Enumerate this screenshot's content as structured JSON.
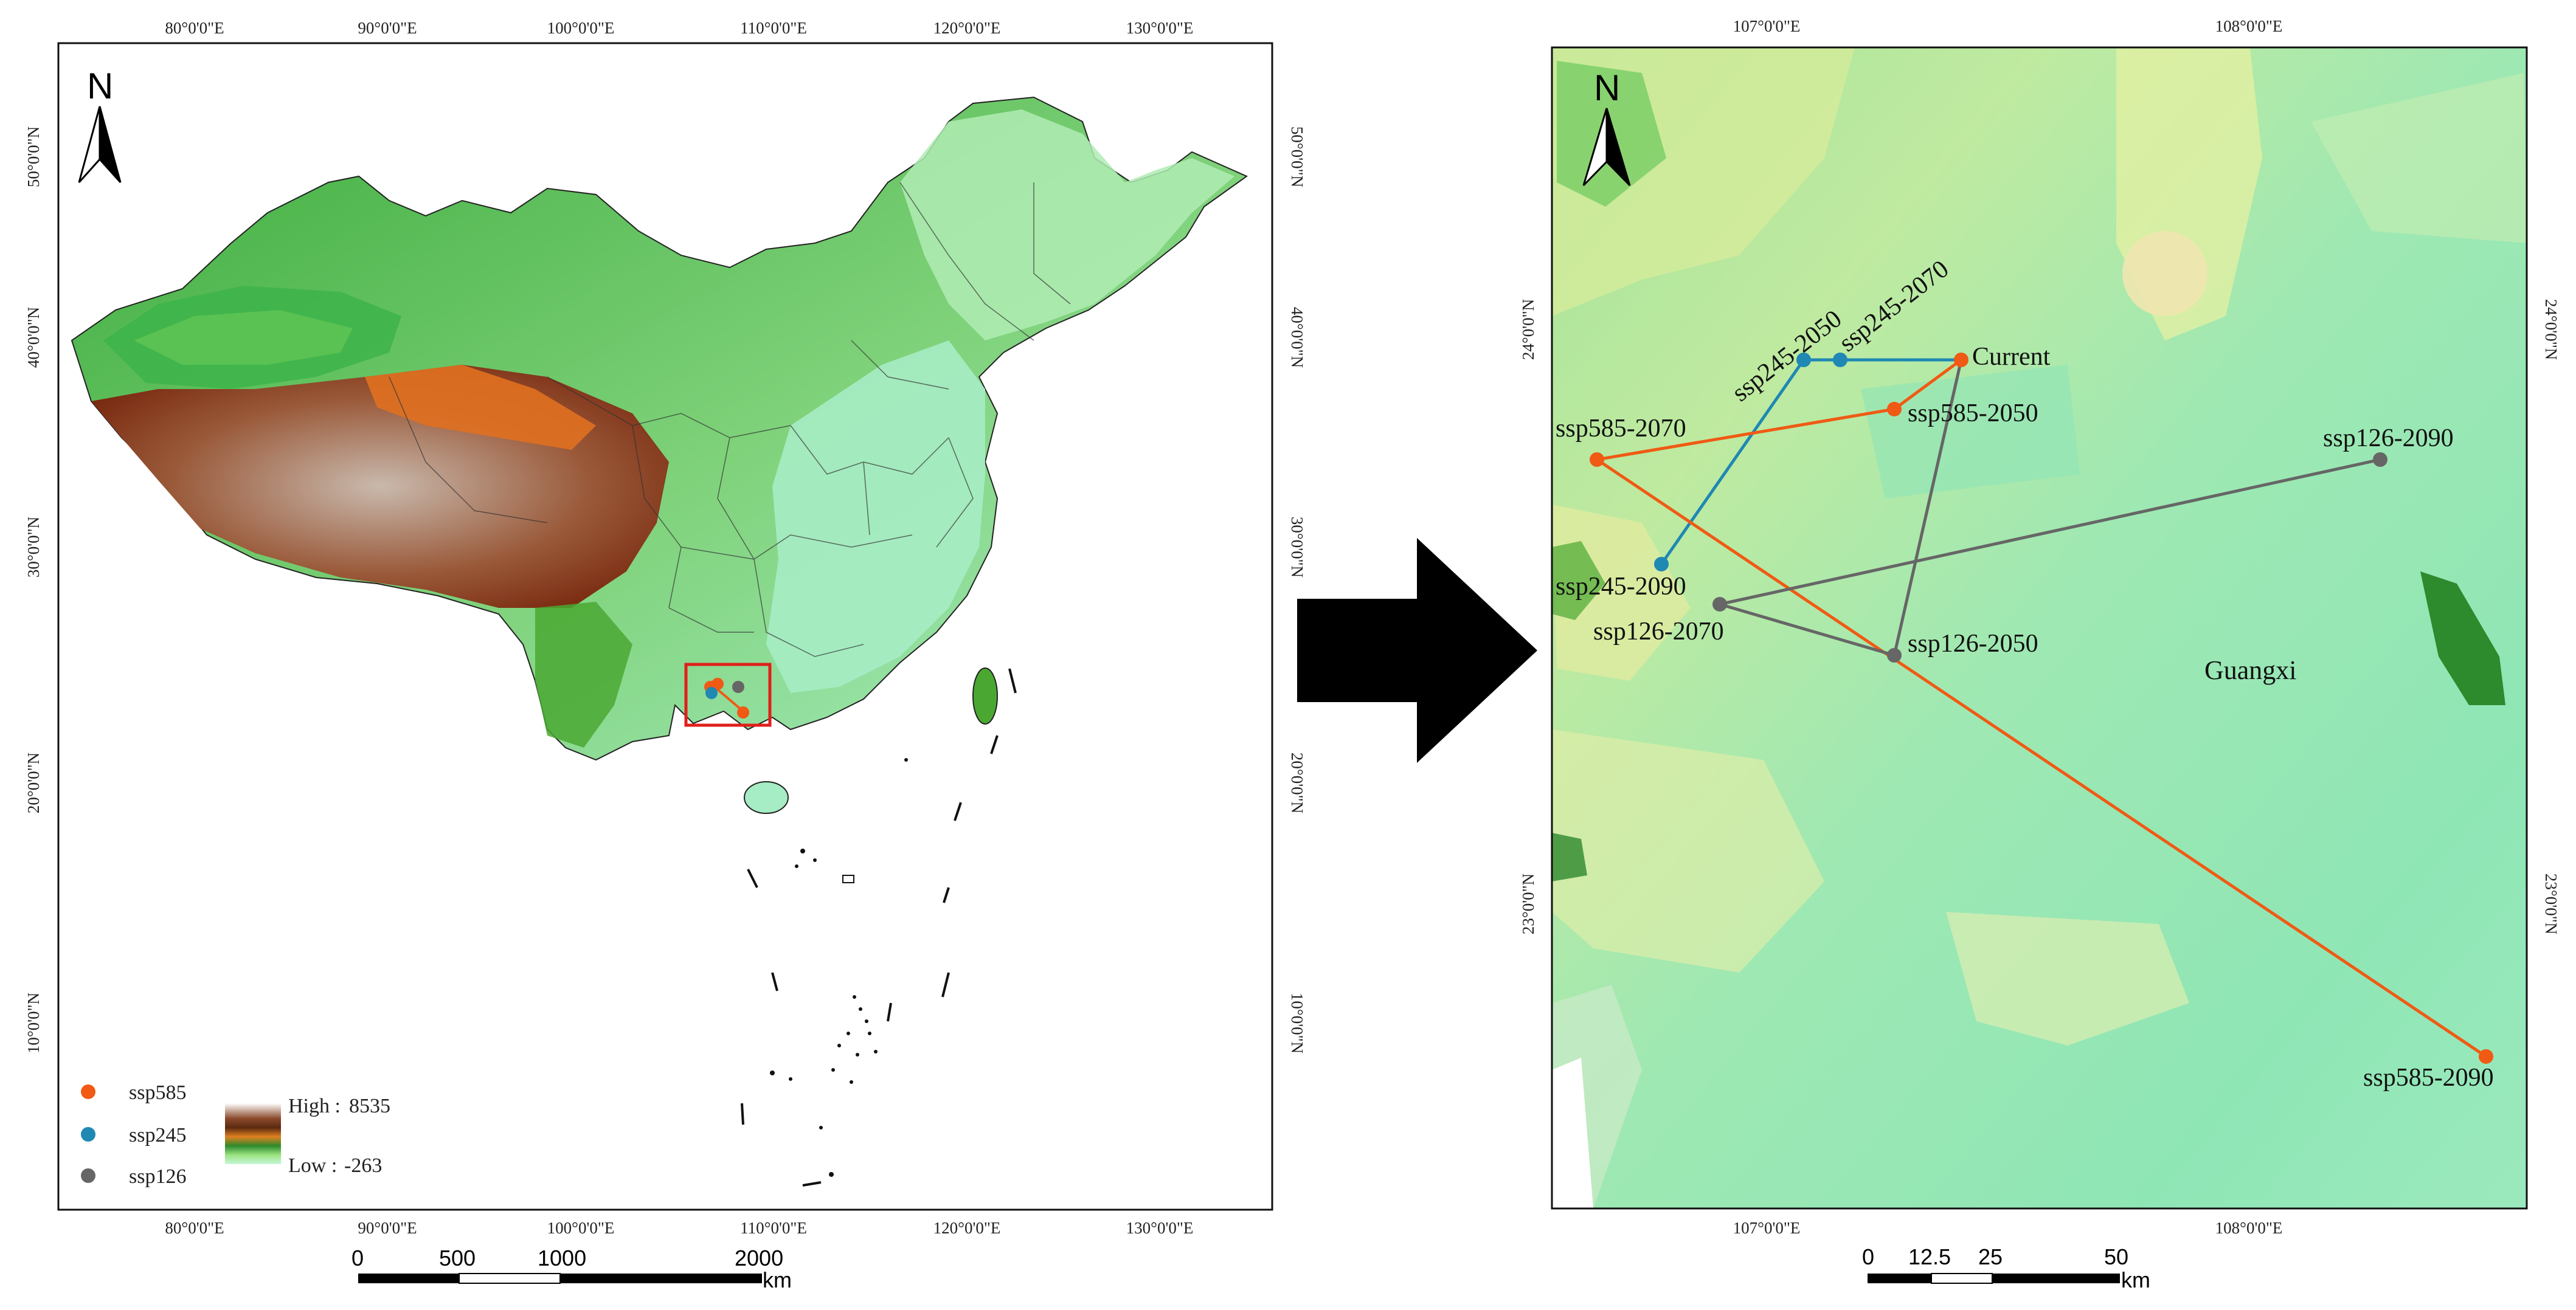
{
  "left_map": {
    "top_ticks": [
      "80°0'0\"E",
      "90°0'0\"E",
      "100°0'0\"E",
      "110°0'0\"E",
      "120°0'0\"E",
      "130°0'0\"E"
    ],
    "bottom_ticks": [
      "80°0'0\"E",
      "90°0'0\"E",
      "100°0'0\"E",
      "110°0'0\"E",
      "120°0'0\"E",
      "130°0'0\"E"
    ],
    "left_ticks": [
      "50°0'0\"N",
      "40°0'0\"N",
      "30°0'0\"N",
      "20°0'0\"N",
      "10°0'0\"N"
    ],
    "right_ticks": [
      "50°0'0\"N",
      "40°0'0\"N",
      "30°0'0\"N",
      "20°0'0\"N",
      "10°0'0\"N"
    ],
    "north": "N",
    "legend": {
      "items": [
        {
          "label": "ssp585",
          "color": "#f05a14"
        },
        {
          "label": "ssp245",
          "color": "#1f88b3"
        },
        {
          "label": "ssp126",
          "color": "#666666"
        }
      ],
      "high_label": "High :",
      "high_value": "8535",
      "low_label": "Low :",
      "low_value": "-263"
    },
    "scale": {
      "labels": [
        "0",
        "500",
        "1000",
        "2000"
      ],
      "unit": "km"
    }
  },
  "right_map": {
    "top_ticks": [
      "107°0'0\"E",
      "108°0'0\"E"
    ],
    "bottom_ticks": [
      "107°0'0\"E",
      "108°0'0\"E"
    ],
    "left_ticks": [
      "24°0'0\"N",
      "23°0'0\"N"
    ],
    "right_ticks": [
      "24°0'0\"N",
      "23°0'0\"N"
    ],
    "north": "N",
    "region_label": "Guangxi",
    "points": {
      "current": "Current",
      "ssp245_2050": "ssp245-2050",
      "ssp245_2070": "ssp245-2070",
      "ssp245_2090": "ssp245-2090",
      "ssp585_2050": "ssp585-2050",
      "ssp585_2070": "ssp585-2070",
      "ssp585_2090": "ssp585-2090",
      "ssp126_2050": "ssp126-2050",
      "ssp126_2070": "ssp126-2070",
      "ssp126_2090": "ssp126-2090"
    },
    "colors": {
      "ssp585": "#f05a14",
      "ssp245": "#1f88b3",
      "ssp126": "#666666"
    },
    "scale": {
      "labels": [
        "0",
        "12.5",
        "25",
        "50"
      ],
      "unit": "km"
    }
  }
}
